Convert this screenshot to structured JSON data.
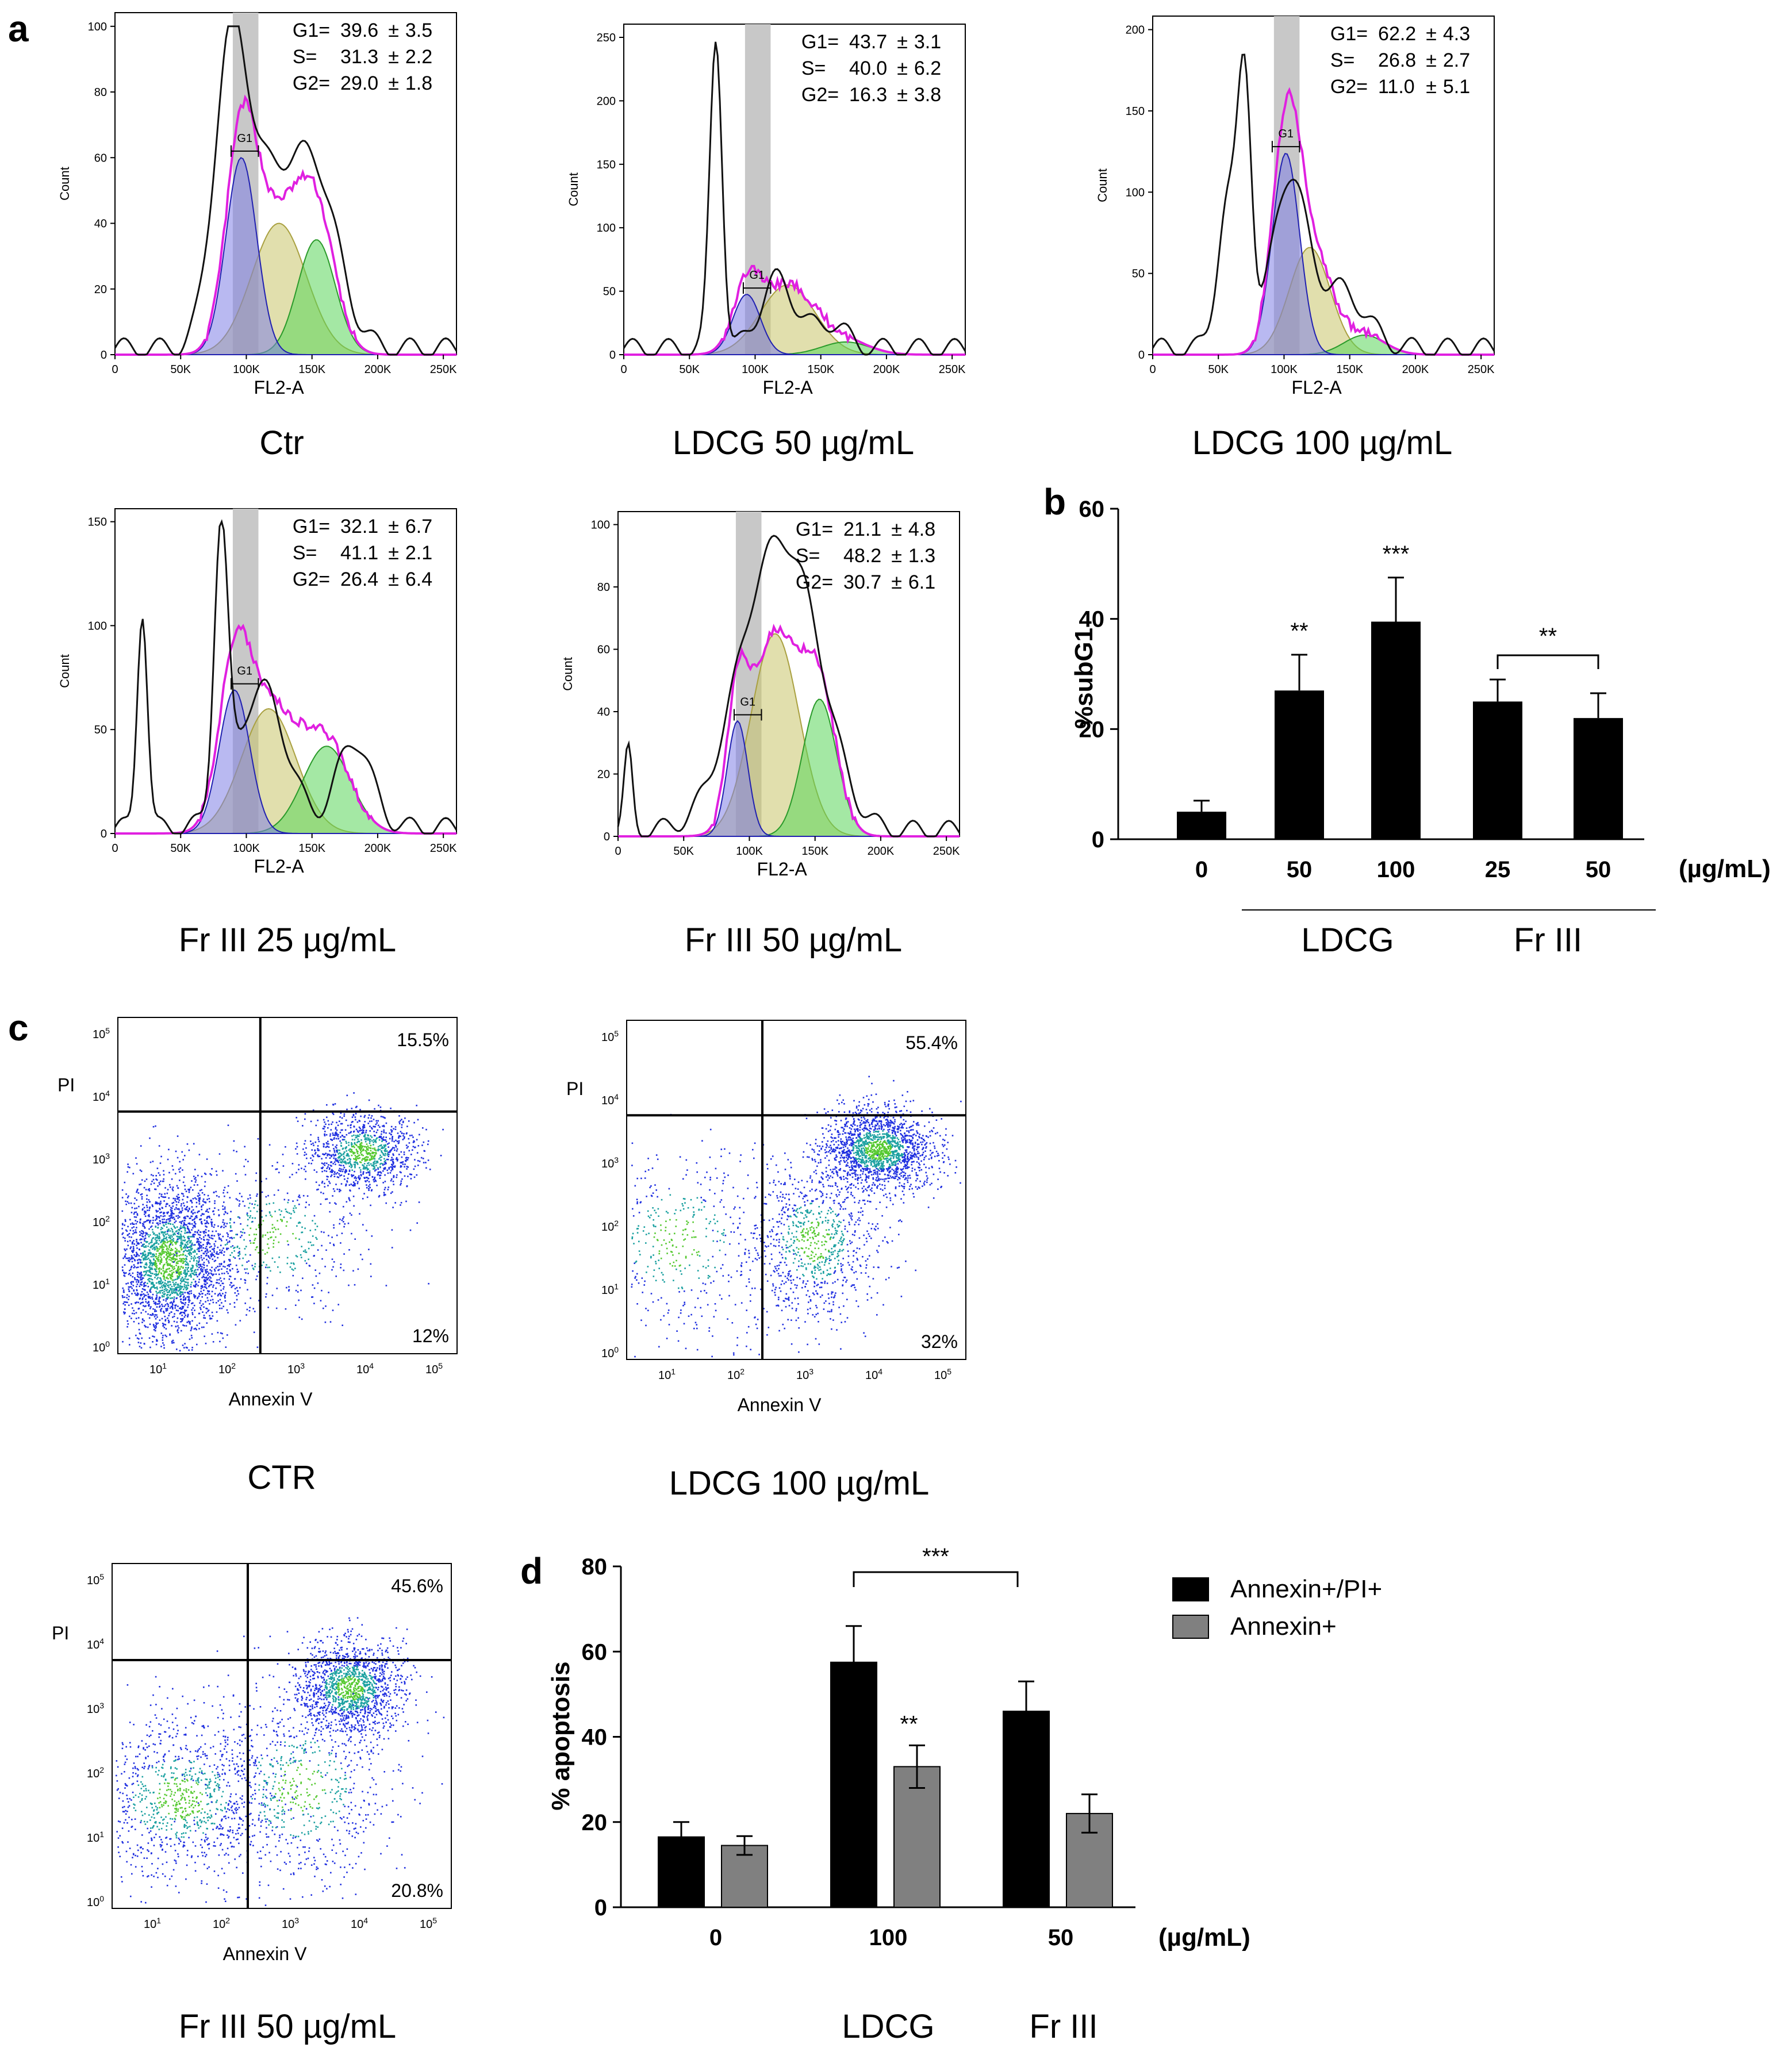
{
  "panel_labels": {
    "a": "a",
    "b": "b",
    "c": "c",
    "d": "d"
  },
  "histograms": [
    {
      "id": "ctr",
      "ymax": 100,
      "yticks": [
        "0",
        "20",
        "40",
        "60",
        "80",
        "100"
      ],
      "xticks": [
        "0",
        "50K",
        "100K",
        "150K",
        "200K",
        "250K"
      ],
      "ylabel": "Count",
      "xlabel": "FL2-A",
      "gate": "G1",
      "stats": [
        {
          "name": "G1=",
          "val": "39.6",
          "err": "3.5"
        },
        {
          "name": "S=",
          "val": "31.3",
          "err": "2.2"
        },
        {
          "name": "G2=",
          "val": "29.0",
          "err": "1.8"
        }
      ],
      "caption": "Ctr"
    },
    {
      "id": "ldcg50",
      "ymax": 250,
      "yticks": [
        "0",
        "50",
        "100",
        "150",
        "200",
        "250"
      ],
      "xticks": [
        "0",
        "50K",
        "100K",
        "150K",
        "200K",
        "250K"
      ],
      "ylabel": "Count",
      "xlabel": "FL2-A",
      "gate": "G1",
      "stats": [
        {
          "name": "G1=",
          "val": "43.7",
          "err": "3.1"
        },
        {
          "name": "S=",
          "val": "40.0",
          "err": "6.2"
        },
        {
          "name": "G2=",
          "val": "16.3",
          "err": "3.8"
        }
      ],
      "caption": "LDCG 50 µg/mL"
    },
    {
      "id": "ldcg100",
      "ymax": 200,
      "yticks": [
        "0",
        "50",
        "100",
        "150",
        "200"
      ],
      "xticks": [
        "0",
        "50K",
        "100K",
        "150K",
        "200K",
        "250K"
      ],
      "ylabel": "Count",
      "xlabel": "FL2-A",
      "gate": "G1",
      "stats": [
        {
          "name": "G1=",
          "val": "62.2",
          "err": "4.3"
        },
        {
          "name": "S=",
          "val": "26.8",
          "err": "2.7"
        },
        {
          "name": "G2=",
          "val": "11.0",
          "err": "5.1"
        }
      ],
      "caption": "LDCG 100 µg/mL"
    },
    {
      "id": "fr25",
      "ymax": 150,
      "yticks": [
        "0",
        "50",
        "100",
        "150"
      ],
      "xticks": [
        "0",
        "50K",
        "100K",
        "150K",
        "200K",
        "250K"
      ],
      "ylabel": "Count",
      "xlabel": "FL2-A",
      "gate": "G1",
      "stats": [
        {
          "name": "G1=",
          "val": "32.1",
          "err": "6.7"
        },
        {
          "name": "S=",
          "val": "41.1",
          "err": "2.1"
        },
        {
          "name": "G2=",
          "val": "26.4",
          "err": "6.4"
        }
      ],
      "caption": "Fr III  25 µg/mL"
    },
    {
      "id": "fr50",
      "ymax": 100,
      "yticks": [
        "0",
        "20",
        "40",
        "60",
        "80",
        "100"
      ],
      "xticks": [
        "0",
        "50K",
        "100K",
        "150K",
        "200K",
        "250K"
      ],
      "ylabel": "Count",
      "xlabel": "FL2-A",
      "gate": "G1",
      "stats": [
        {
          "name": "G1=",
          "val": "21.1",
          "err": "4.8"
        },
        {
          "name": "S=",
          "val": "48.2",
          "err": "1.3"
        },
        {
          "name": "G2=",
          "val": "30.7",
          "err": "6.1"
        }
      ],
      "caption": "Fr III  50 µg/mL"
    }
  ],
  "scatters": [
    {
      "id": "ctr",
      "ur": "15.5%",
      "lr": "12%",
      "ylabel": "PI",
      "xlabel": "Annexin V",
      "caption": "CTR"
    },
    {
      "id": "ldcg100",
      "ur": "55.4%",
      "lr": "32%",
      "ylabel": "PI",
      "xlabel": "Annexin V",
      "caption": "LDCG 100 µg/mL"
    },
    {
      "id": "fr50",
      "ur": "45.6%",
      "lr": "20.8%",
      "ylabel": "PI",
      "xlabel": "Annexin V",
      "caption": "Fr III  50 µg/mL"
    }
  ],
  "scatter_axis": {
    "ticks": [
      "0",
      "1",
      "2",
      "3",
      "4",
      "5"
    ],
    "base": "10"
  },
  "chart_data": [
    {
      "type": "bar",
      "panel": "b",
      "title": "",
      "ylabel": "%subG1",
      "xlabel": "(µg/mL)",
      "ylim": [
        0,
        60
      ],
      "yticks": [
        0,
        20,
        40,
        60
      ],
      "categories": [
        "0",
        "50",
        "100",
        "25",
        "50"
      ],
      "values": [
        5,
        27,
        39.5,
        25,
        22
      ],
      "errors": [
        2,
        6.5,
        8,
        4,
        4.5
      ],
      "significance": [
        "",
        "**",
        "***",
        "",
        ""
      ],
      "bracket": {
        "from": 3,
        "to": 4,
        "label": "**"
      },
      "groups": [
        {
          "label": "LDCG",
          "from": 1,
          "to": 2
        },
        {
          "label": "Fr III",
          "from": 3,
          "to": 4
        }
      ]
    },
    {
      "type": "bar",
      "panel": "d",
      "title": "",
      "ylabel": "% apoptosis",
      "xlabel": "(µg/mL)",
      "ylim": [
        0,
        80
      ],
      "yticks": [
        0,
        20,
        40,
        60,
        80
      ],
      "categories": [
        "0",
        "100",
        "50"
      ],
      "series": [
        {
          "name": "Annexin+/PI+",
          "color": "#000000",
          "values": [
            16.5,
            57.5,
            46
          ],
          "errors": [
            3.5,
            8.5,
            7
          ],
          "significance": [
            "",
            "",
            ""
          ]
        },
        {
          "name": "Annexin+",
          "color": "#808080",
          "values": [
            14.5,
            33,
            22
          ],
          "errors": [
            2.2,
            5,
            4.5
          ],
          "significance": [
            "",
            "**",
            ""
          ]
        }
      ],
      "bracket": {
        "from": 1,
        "to": 2,
        "label": "***"
      },
      "groups": [
        {
          "label": "LDCG",
          "at": 1
        },
        {
          "label": "Fr III",
          "at": 2
        }
      ],
      "legend_position": "top-right"
    }
  ]
}
